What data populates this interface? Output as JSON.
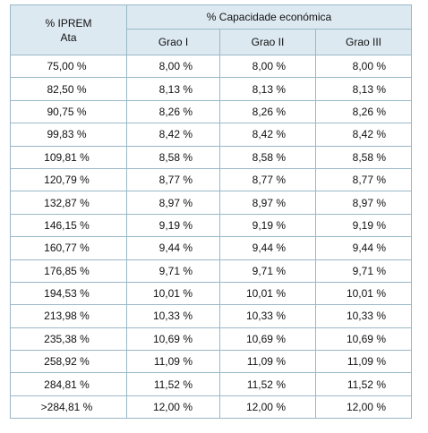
{
  "header": {
    "ipremata_line1": "% IPREM",
    "ipremata_line2": "Ata",
    "group_label": "% Capacidade económica",
    "grades": [
      "Grao I",
      "Grao II",
      "Grao III"
    ]
  },
  "rows": [
    [
      "75,00 %",
      "8,00 %",
      "8,00 %",
      "8,00 %"
    ],
    [
      "82,50 %",
      "8,13 %",
      "8,13 %",
      "8,13 %"
    ],
    [
      "90,75 %",
      "8,26 %",
      "8,26 %",
      "8,26 %"
    ],
    [
      "99,83 %",
      "8,42 %",
      "8,42 %",
      "8,42 %"
    ],
    [
      "109,81 %",
      "8,58 %",
      "8,58 %",
      "8,58 %"
    ],
    [
      "120,79 %",
      "8,77 %",
      "8,77 %",
      "8,77 %"
    ],
    [
      "132,87 %",
      "8,97 %",
      "8,97 %",
      "8,97 %"
    ],
    [
      "146,15 %",
      "9,19 %",
      "9,19 %",
      "9,19 %"
    ],
    [
      "160,77 %",
      "9,44 %",
      "9,44 %",
      "9,44 %"
    ],
    [
      "176,85 %",
      "9,71 %",
      "9,71 %",
      "9,71 %"
    ],
    [
      "194,53 %",
      "10,01 %",
      "10,01 %",
      "10,01 %"
    ],
    [
      "213,98 %",
      "10,33 %",
      "10,33 %",
      "10,33 %"
    ],
    [
      "235,38 %",
      "10,69 %",
      "10,69 %",
      "10,69 %"
    ],
    [
      "258,92 %",
      "11,09 %",
      "11,09 %",
      "11,09 %"
    ],
    [
      "284,81 %",
      "11,52 %",
      "11,52 %",
      "11,52 %"
    ],
    [
      ">284,81 %",
      "12,00 %",
      "12,00 %",
      "12,00 %"
    ]
  ],
  "colors": {
    "header_bg": "#dde9f1",
    "border": "#9ab8c8",
    "text": "#111111"
  }
}
